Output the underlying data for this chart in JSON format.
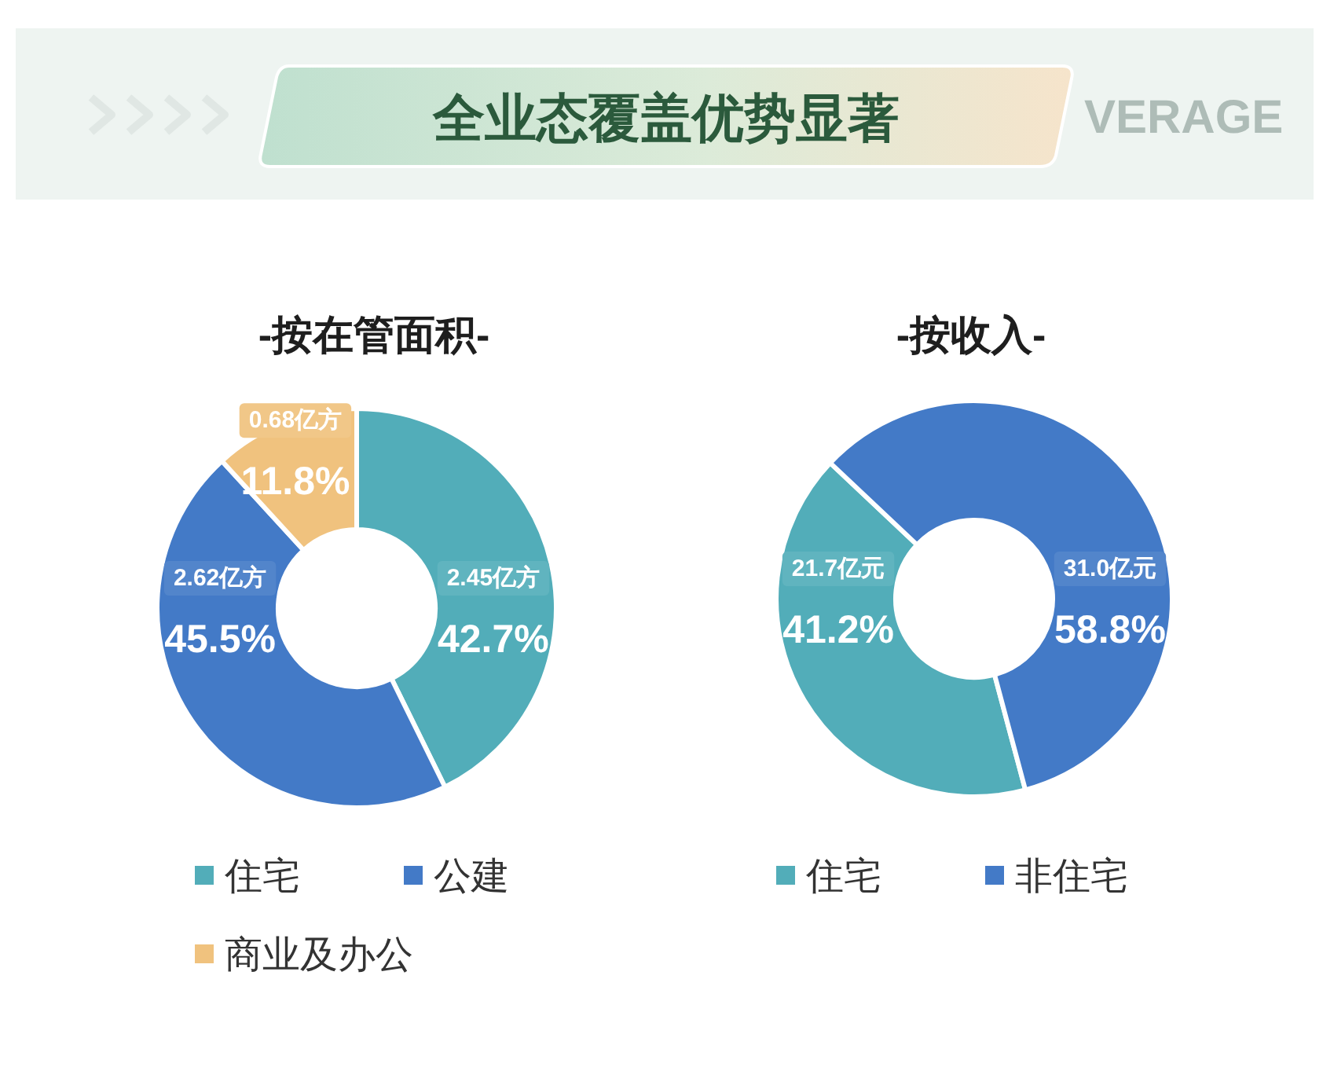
{
  "chart_data": [
    {
      "type": "donut",
      "title": "-按在管面积-",
      "categories": [
        "住宅",
        "公建",
        "商业及办公"
      ],
      "values": [
        42.7,
        45.5,
        11.8
      ],
      "colors": [
        "#52adb9",
        "#437ac7",
        "#f0c27e"
      ],
      "value_labels": [
        "42.7%",
        "45.5%",
        "11.8%"
      ],
      "annotations": [
        "全业态覆盖优势显著",
        "VERAGE",
        {
          "text": "2.45亿方",
          "x": "住宅"
        },
        {
          "text": "2.62亿方",
          "x": "公建"
        },
        {
          "text": "0.68亿方",
          "x": "商业及办公"
        }
      ],
      "legend": "bottom"
    },
    {
      "type": "donut",
      "title": "-按收入-",
      "categories": [
        "住宅",
        "非住宅"
      ],
      "values": [
        41.2,
        58.8
      ],
      "colors": [
        "#52adb9",
        "#437ac7"
      ],
      "value_labels": [
        "41.2%",
        "58.8%"
      ],
      "annotations": [
        {
          "text": "21.7亿元",
          "x": "住宅"
        },
        {
          "text": "31.0亿元",
          "x": "非住宅"
        }
      ],
      "legend": "bottom"
    }
  ]
}
